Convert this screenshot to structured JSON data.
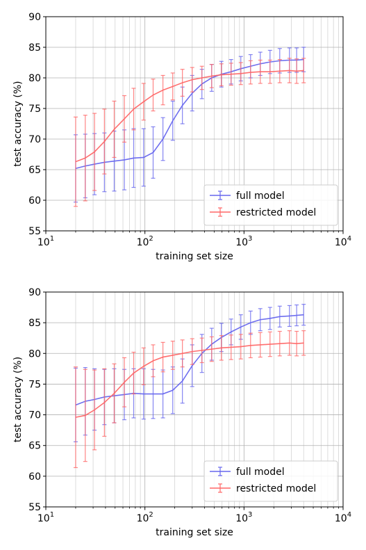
{
  "chart_data": [
    {
      "type": "line",
      "xscale": "log",
      "xlim": [
        10,
        10000
      ],
      "ylim": [
        55,
        90
      ],
      "grid": true,
      "legend_position": "lower-right",
      "xlabel": "training set size",
      "ylabel": "test accuracy (%)",
      "xticks": [
        {
          "base": "10",
          "exp": "1"
        },
        {
          "base": "10",
          "exp": "2"
        },
        {
          "base": "10",
          "exp": "3"
        },
        {
          "base": "10",
          "exp": "4"
        }
      ],
      "yticks": [
        "55",
        "60",
        "65",
        "70",
        "75",
        "80",
        "85",
        "90"
      ],
      "series": [
        {
          "name": "full model",
          "color": "#6666ee",
          "x": [
            20,
            25,
            31,
            39,
            49,
            62,
            77,
            97,
            121,
            152,
            191,
            239,
            300,
            376,
            472,
            591,
            741,
            929,
            1165,
            1460,
            1831,
            2295,
            2877,
            3400,
            4000
          ],
          "y": [
            65.2,
            65.6,
            65.9,
            66.2,
            66.4,
            66.6,
            66.9,
            67.0,
            67.8,
            70.0,
            73.0,
            75.5,
            77.5,
            79.0,
            80.0,
            80.6,
            81.0,
            81.5,
            81.9,
            82.3,
            82.6,
            82.8,
            82.9,
            82.9,
            83.0
          ],
          "err": [
            5.5,
            5.2,
            5.0,
            4.8,
            4.9,
            4.9,
            4.8,
            4.7,
            4.2,
            3.5,
            3.2,
            3.0,
            2.9,
            2.4,
            2.2,
            2.1,
            2.0,
            2.0,
            1.9,
            1.9,
            1.9,
            2.0,
            2.0,
            2.0,
            2.0
          ]
        },
        {
          "name": "restricted model",
          "color": "#ff6666",
          "x": [
            20,
            25,
            31,
            39,
            49,
            62,
            77,
            97,
            121,
            152,
            191,
            239,
            300,
            376,
            472,
            591,
            741,
            929,
            1165,
            1460,
            1831,
            2295,
            2877,
            3400,
            4000
          ],
          "y": [
            66.3,
            66.9,
            67.9,
            69.6,
            71.6,
            73.3,
            74.9,
            76.1,
            77.2,
            78.0,
            78.6,
            79.2,
            79.7,
            80.0,
            80.3,
            80.5,
            80.6,
            80.7,
            80.9,
            81.0,
            81.0,
            81.1,
            81.2,
            81.1,
            81.2
          ],
          "err": [
            7.3,
            7.0,
            6.3,
            5.3,
            4.6,
            3.8,
            3.4,
            3.0,
            2.6,
            2.4,
            2.2,
            2.2,
            2.0,
            1.9,
            1.9,
            1.8,
            1.8,
            1.8,
            1.9,
            1.9,
            1.9,
            1.9,
            2.0,
            2.0,
            2.0
          ]
        }
      ]
    },
    {
      "type": "line",
      "xscale": "log",
      "xlim": [
        10,
        10000
      ],
      "ylim": [
        55,
        90
      ],
      "grid": true,
      "legend_position": "lower-right",
      "xlabel": "training set size",
      "ylabel": "test accuracy (%)",
      "xticks": [
        {
          "base": "10",
          "exp": "1"
        },
        {
          "base": "10",
          "exp": "2"
        },
        {
          "base": "10",
          "exp": "3"
        },
        {
          "base": "10",
          "exp": "4"
        }
      ],
      "yticks": [
        "55",
        "60",
        "65",
        "70",
        "75",
        "80",
        "85",
        "90"
      ],
      "series": [
        {
          "name": "full model",
          "color": "#6666ee",
          "x": [
            20,
            25,
            31,
            39,
            49,
            62,
            77,
            97,
            121,
            152,
            191,
            239,
            300,
            376,
            472,
            591,
            741,
            929,
            1165,
            1460,
            1831,
            2295,
            2877,
            3400,
            4000
          ],
          "y": [
            71.6,
            72.2,
            72.5,
            72.9,
            73.1,
            73.3,
            73.5,
            73.4,
            73.4,
            73.4,
            74.0,
            75.5,
            78.0,
            80.0,
            81.5,
            82.6,
            83.5,
            84.3,
            85.0,
            85.5,
            85.7,
            86.0,
            86.1,
            86.2,
            86.3
          ],
          "err": [
            6.0,
            5.5,
            5.0,
            4.5,
            4.4,
            4.1,
            4.0,
            4.1,
            4.0,
            3.9,
            3.8,
            3.6,
            3.4,
            3.1,
            2.6,
            2.3,
            2.1,
            2.0,
            1.9,
            1.8,
            1.8,
            1.7,
            1.7,
            1.7,
            1.7
          ]
        },
        {
          "name": "restricted model",
          "color": "#ff6666",
          "x": [
            20,
            25,
            31,
            39,
            49,
            62,
            77,
            97,
            121,
            152,
            191,
            239,
            300,
            376,
            472,
            591,
            741,
            929,
            1165,
            1460,
            1831,
            2295,
            2877,
            3400,
            4000
          ],
          "y": [
            69.6,
            69.9,
            70.8,
            72.0,
            73.5,
            75.3,
            76.8,
            77.9,
            78.8,
            79.4,
            79.7,
            80.0,
            80.3,
            80.5,
            80.7,
            80.9,
            81.0,
            81.1,
            81.3,
            81.4,
            81.5,
            81.6,
            81.7,
            81.6,
            81.7
          ],
          "err": [
            8.2,
            7.5,
            6.5,
            5.5,
            4.8,
            4.0,
            3.4,
            3.0,
            2.6,
            2.4,
            2.3,
            2.2,
            2.1,
            2.0,
            2.0,
            2.0,
            2.0,
            2.0,
            2.0,
            2.0,
            2.0,
            2.0,
            2.0,
            2.0,
            2.0
          ]
        }
      ]
    }
  ]
}
